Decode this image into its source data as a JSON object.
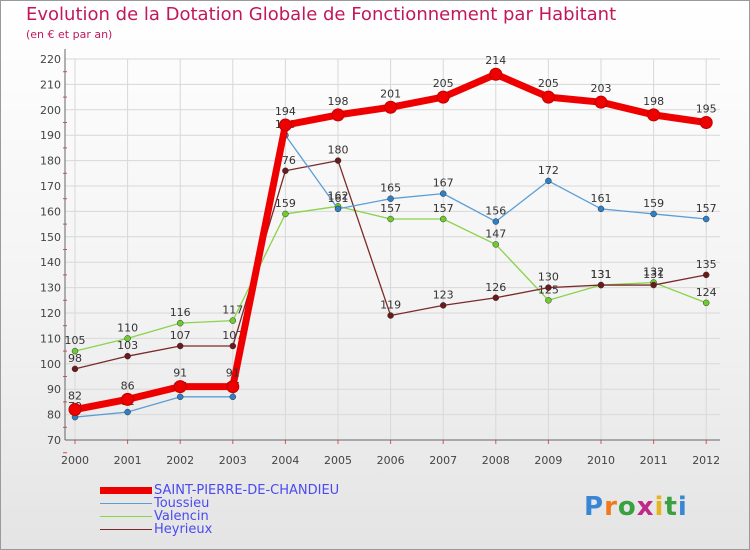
{
  "title": "Evolution de la Dotation Globale de Fonctionnement par Habitant",
  "subtitle": "(en € et par an)",
  "logo": {
    "text": "Proxiti",
    "letters": [
      "P",
      "r",
      "o",
      "x",
      "i",
      "t",
      "i"
    ],
    "colors": [
      "#3a86d6",
      "#f07a1a",
      "#3aa040",
      "#c0288a",
      "#e8b41e",
      "#3aa040",
      "#3a86d6"
    ]
  },
  "chart_data": {
    "type": "line",
    "title": "Evolution de la Dotation Globale de Fonctionnement par Habitant",
    "subtitle": "(en € et par an)",
    "xlabel": "",
    "ylabel": "",
    "x": [
      "2000",
      "2001",
      "2002",
      "2003",
      "2004",
      "2005",
      "2006",
      "2007",
      "2008",
      "2009",
      "2010",
      "2011",
      "2012"
    ],
    "ylim": [
      70,
      220
    ],
    "yticks": [
      70,
      80,
      90,
      100,
      110,
      120,
      130,
      140,
      150,
      160,
      170,
      180,
      190,
      200,
      210,
      220
    ],
    "grid": true,
    "legend_position": "bottom-left",
    "series": [
      {
        "name": "Valencin",
        "color": "#8ad34a",
        "marker": "#6fcc2e",
        "values": [
          105,
          110,
          116,
          117,
          159,
          162,
          157,
          157,
          147,
          125,
          131,
          132,
          124
        ]
      },
      {
        "name": "Heyrieux",
        "color": "#7a2a2a",
        "marker": "#6a1a1a",
        "values": [
          98,
          103,
          107,
          107,
          176,
          180,
          119,
          123,
          126,
          130,
          131,
          131,
          135
        ]
      },
      {
        "name": "Toussieu",
        "color": "#5b9ed6",
        "marker": "#2f7fc4",
        "values": [
          79,
          81,
          87,
          87,
          190,
          161,
          165,
          167,
          156,
          172,
          161,
          159,
          157
        ]
      },
      {
        "name": "SAINT-PIERRE-DE-CHANDIEU",
        "color": "#ee0000",
        "marker": "#ee0000",
        "thick": true,
        "values": [
          82,
          86,
          91,
          91,
          194,
          198,
          201,
          205,
          214,
          205,
          203,
          198,
          195
        ]
      }
    ],
    "legend": [
      "SAINT-PIERRE-DE-CHANDIEU",
      "Toussieu",
      "Valencin",
      "Heyrieux"
    ]
  }
}
